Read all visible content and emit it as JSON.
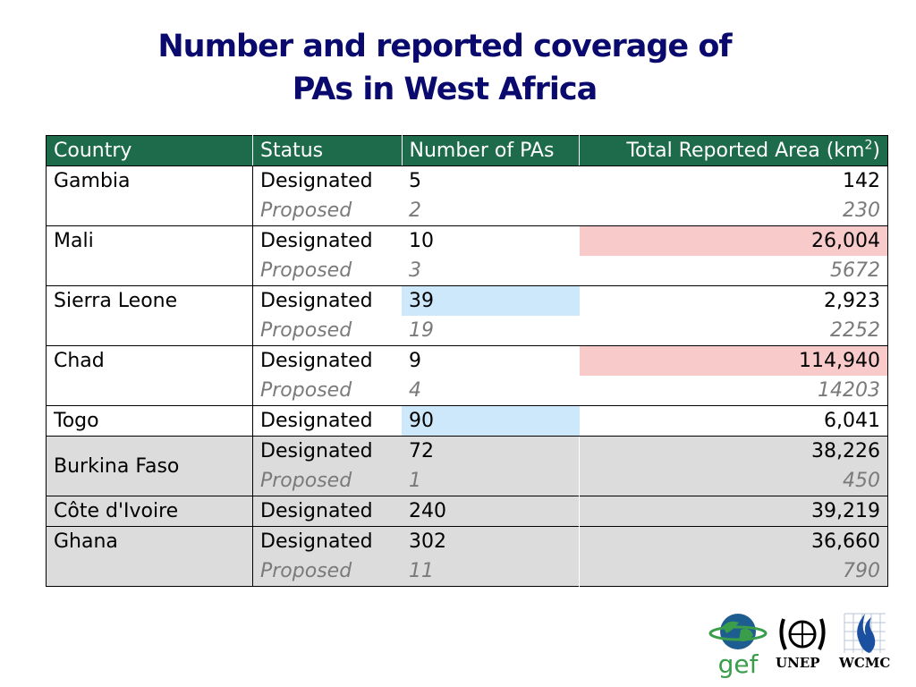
{
  "title_line1": "Number and reported coverage of",
  "title_line2": "PAs in West Africa",
  "headers": {
    "country": "Country",
    "status": "Status",
    "count": "Number of PAs",
    "area": "Total Reported Area (km",
    "area_sup": "2",
    "area_close": ")"
  },
  "rows": [
    {
      "country": "Gambia",
      "designated": {
        "status": "Designated",
        "count": "5",
        "area": "142"
      },
      "proposed": {
        "status": "Proposed",
        "count": "2",
        "area": "230"
      }
    },
    {
      "country": "Mali",
      "designated": {
        "status": "Designated",
        "count": "10",
        "area": "26,004"
      },
      "proposed": {
        "status": "Proposed",
        "count": "3",
        "area": "5672"
      }
    },
    {
      "country": "Sierra Leone",
      "designated": {
        "status": "Designated",
        "count": "39",
        "area": "2,923"
      },
      "proposed": {
        "status": "Proposed",
        "count": "19",
        "area": "2252"
      }
    },
    {
      "country": "Chad",
      "designated": {
        "status": "Designated",
        "count": "9",
        "area": "114,940"
      },
      "proposed": {
        "status": "Proposed",
        "count": "4",
        "area": "14203"
      }
    },
    {
      "country": "Togo",
      "designated": {
        "status": "Designated",
        "count": "90",
        "area": "6,041"
      }
    },
    {
      "country": "Burkina Faso",
      "designated": {
        "status": "Designated",
        "count": "72",
        "area": "38,226"
      },
      "proposed": {
        "status": "Proposed",
        "count": "1",
        "area": "450"
      }
    },
    {
      "country": "Côte d'Ivoire",
      "designated": {
        "status": "Designated",
        "count": "240",
        "area": "39,219"
      }
    },
    {
      "country": "Ghana",
      "designated": {
        "status": "Designated",
        "count": "302",
        "area": "36,660"
      },
      "proposed": {
        "status": "Proposed",
        "count": "11",
        "area": "790"
      }
    }
  ],
  "highlight_colors": {
    "high_area": "#f9caca",
    "high_count": "#cde8fb",
    "header": "#1e6b4c",
    "title": "#0a0a6e"
  },
  "logos": {
    "gef": "gef",
    "unep": "UNEP",
    "wcmc": "WCMC"
  }
}
